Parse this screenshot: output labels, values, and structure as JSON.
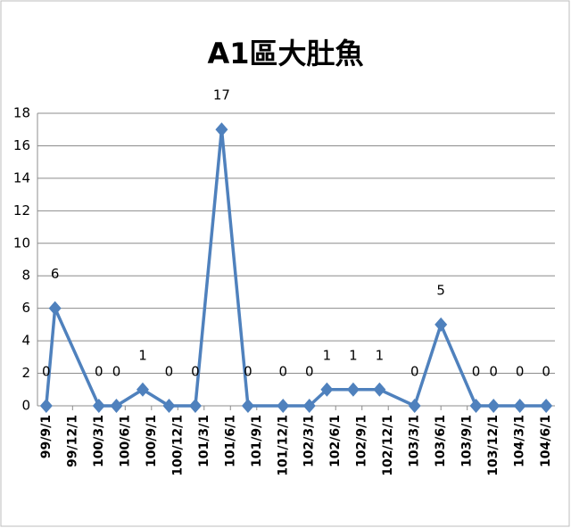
{
  "chart_data": {
    "type": "line",
    "title": "A1區大肚魚",
    "x": [
      "99/9/1",
      "99/10/1",
      "100/3/1",
      "100/5/1",
      "100/8/1",
      "100/11/1",
      "101/2/1",
      "101/5/1",
      "101/8/1",
      "101/12/1",
      "102/3/1",
      "102/5/1",
      "102/8/1",
      "102/11/1",
      "103/3/1",
      "103/6/1",
      "103/10/1",
      "103/12/1",
      "104/3/1",
      "104/6/1"
    ],
    "series": [
      {
        "name": "A1區大肚魚",
        "color": "#4f81bd",
        "values": [
          0,
          6,
          0,
          0,
          1,
          0,
          0,
          17,
          0,
          0,
          0,
          1,
          1,
          1,
          0,
          5,
          0,
          0,
          0,
          0
        ]
      }
    ],
    "xlim": [
      "99/8/1",
      "104/7/1"
    ],
    "xticks": [
      "99/9/1",
      "99/12/1",
      "100/3/1",
      "100/6/1",
      "100/9/1",
      "100/12/1",
      "101/3/1",
      "101/6/1",
      "101/9/1",
      "101/12/1",
      "102/3/1",
      "102/6/1",
      "102/9/1",
      "102/12/1",
      "103/3/1",
      "103/6/1",
      "103/9/1",
      "103/12/1",
      "104/3/1",
      "104/6/1"
    ],
    "ylim": [
      0,
      18
    ],
    "yticks": [
      0,
      2,
      4,
      6,
      8,
      10,
      12,
      14,
      16,
      18
    ],
    "grid": true
  }
}
